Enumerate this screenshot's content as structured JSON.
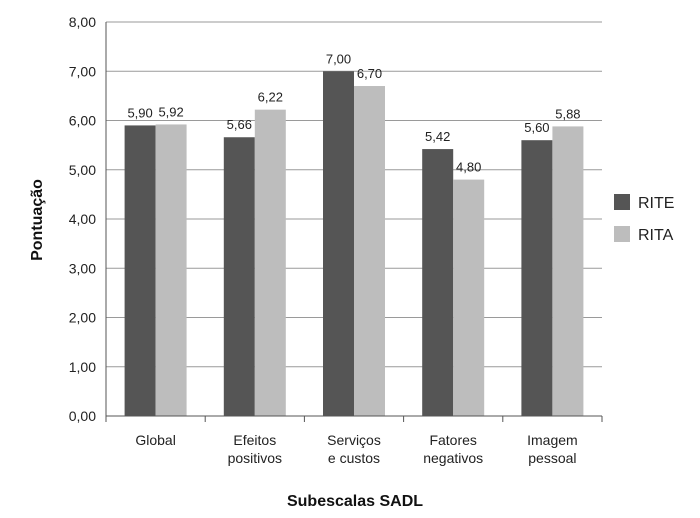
{
  "chart_data": {
    "type": "bar",
    "title": "",
    "xlabel": "Subescalas SADL",
    "ylabel": "Pontuação",
    "ylim": [
      0,
      8
    ],
    "yticks": [
      "0,00",
      "1,00",
      "2,00",
      "3,00",
      "4,00",
      "5,00",
      "6,00",
      "7,00",
      "8,00"
    ],
    "grid": true,
    "legend_position": "right",
    "categories": [
      [
        "Global"
      ],
      [
        "Efeitos",
        "positivos"
      ],
      [
        "Serviços",
        "e custos"
      ],
      [
        "Fatores",
        "negativos"
      ],
      [
        "Imagem",
        "pessoal"
      ]
    ],
    "series": [
      {
        "name": "RITE",
        "color": "#555555",
        "values": [
          5.9,
          5.66,
          7.0,
          5.42,
          5.6
        ],
        "labels": [
          "5,90",
          "5,66",
          "7,00",
          "5,42",
          "5,60"
        ]
      },
      {
        "name": "RITA",
        "color": "#bdbdbd",
        "values": [
          5.92,
          6.22,
          6.7,
          4.8,
          5.88
        ],
        "labels": [
          "5,92",
          "6,22",
          "6,70",
          "4,80",
          "5,88"
        ]
      }
    ]
  }
}
